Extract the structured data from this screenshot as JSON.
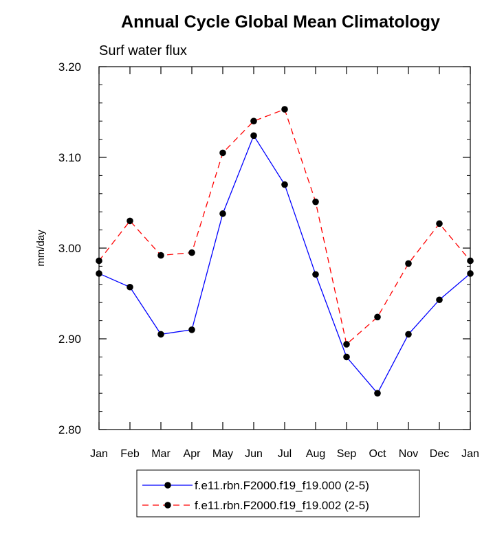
{
  "chart_data": {
    "type": "line",
    "title": "Annual Cycle Global Mean Climatology",
    "subtitle": "Surf water flux",
    "ylabel": "mm/day",
    "xlabel": "",
    "ylim": [
      2.8,
      3.2
    ],
    "yticks": [
      "3.20",
      "3.10",
      "3.00",
      "2.90",
      "2.80"
    ],
    "ytick_values": [
      3.2,
      3.1,
      3.0,
      2.9,
      2.8
    ],
    "categories": [
      "Jan",
      "Feb",
      "Mar",
      "Apr",
      "May",
      "Jun",
      "Jul",
      "Aug",
      "Sep",
      "Oct",
      "Nov",
      "Dec",
      "Jan"
    ],
    "series": [
      {
        "name": "f.e11.rbn.F2000.f19_f19.000 (2-5)",
        "color": "#0000ff",
        "style": "solid",
        "values": [
          2.972,
          2.957,
          2.905,
          2.91,
          3.038,
          3.124,
          3.07,
          2.971,
          2.88,
          2.84,
          2.905,
          2.943,
          2.972
        ]
      },
      {
        "name": "f.e11.rbn.F2000.f19_f19.002 (2-5)",
        "color": "#ff0000",
        "style": "dashed",
        "values": [
          2.986,
          3.03,
          2.992,
          2.995,
          3.105,
          3.14,
          3.153,
          3.051,
          2.894,
          2.924,
          2.983,
          3.027,
          2.986
        ]
      }
    ],
    "legend": "bottom"
  }
}
